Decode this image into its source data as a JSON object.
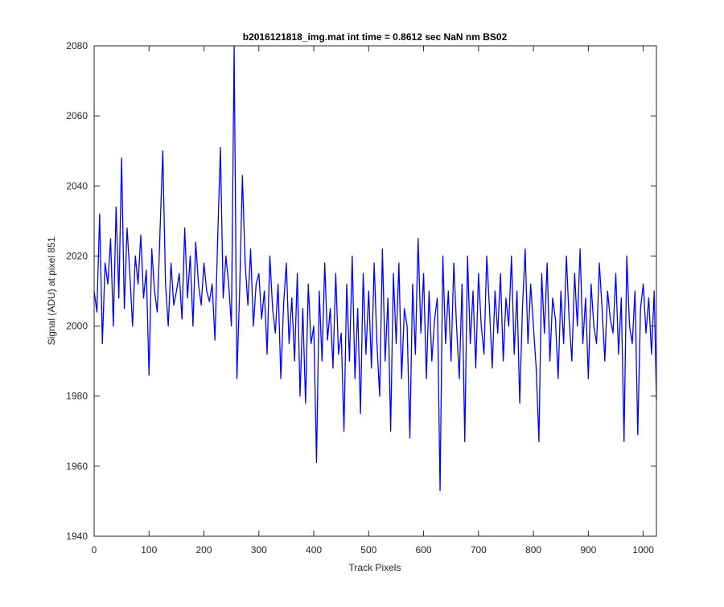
{
  "chart_data": {
    "type": "line",
    "title": "b2016121818_img.mat int time = 0.8612 sec  NaN nm BS02",
    "x_label": "Track Pixels",
    "y_label": "Signal (ADU) at pixel 851",
    "xlim": [
      0,
      1024
    ],
    "ylim": [
      1940,
      2080
    ],
    "xticks": [
      0,
      100,
      200,
      300,
      400,
      500,
      600,
      700,
      800,
      900,
      1000
    ],
    "yticks": [
      1940,
      1960,
      1980,
      2000,
      2020,
      2040,
      2060,
      2080
    ],
    "grid": false,
    "series": [
      {
        "color": "#0000ff",
        "x": [
          0,
          5,
          10,
          15,
          20,
          25,
          30,
          35,
          40,
          45,
          50,
          55,
          60,
          65,
          70,
          75,
          80,
          85,
          90,
          95,
          100,
          105,
          110,
          115,
          120,
          125,
          130,
          135,
          140,
          145,
          150,
          155,
          160,
          165,
          170,
          175,
          180,
          185,
          190,
          195,
          200,
          205,
          210,
          215,
          220,
          225,
          230,
          235,
          240,
          245,
          250,
          255,
          260,
          265,
          270,
          275,
          280,
          285,
          290,
          295,
          300,
          305,
          310,
          315,
          320,
          325,
          330,
          335,
          340,
          345,
          350,
          355,
          360,
          365,
          370,
          375,
          380,
          385,
          390,
          395,
          400,
          405,
          410,
          415,
          420,
          425,
          430,
          435,
          440,
          445,
          450,
          455,
          460,
          465,
          470,
          475,
          480,
          485,
          490,
          495,
          500,
          505,
          510,
          515,
          520,
          525,
          530,
          535,
          540,
          545,
          550,
          555,
          560,
          565,
          570,
          575,
          580,
          585,
          590,
          595,
          600,
          605,
          610,
          615,
          620,
          625,
          630,
          635,
          640,
          645,
          650,
          655,
          660,
          665,
          670,
          675,
          680,
          685,
          690,
          695,
          700,
          705,
          710,
          715,
          720,
          725,
          730,
          735,
          740,
          745,
          750,
          755,
          760,
          765,
          770,
          775,
          780,
          785,
          790,
          795,
          800,
          805,
          810,
          815,
          820,
          825,
          830,
          835,
          840,
          845,
          850,
          855,
          860,
          865,
          870,
          875,
          880,
          885,
          890,
          895,
          900,
          905,
          910,
          915,
          920,
          925,
          930,
          935,
          940,
          945,
          950,
          955,
          960,
          965,
          970,
          975,
          980,
          985,
          990,
          995,
          1000,
          1005,
          1010,
          1015,
          1020,
          1024
        ],
        "values": [
          2010,
          2004,
          2032,
          1995,
          2018,
          2012,
          2025,
          2000,
          2034,
          2008,
          2048,
          2005,
          2028,
          2015,
          2000,
          2020,
          2012,
          2026,
          2008,
          2016,
          1986,
          2022,
          2010,
          2004,
          2027,
          2050,
          2012,
          2000,
          2018,
          2006,
          2010,
          2015,
          2002,
          2028,
          2008,
          2020,
          2000,
          2024,
          2012,
          2006,
          2018,
          2010,
          2007,
          2012,
          1996,
          2025,
          2051,
          2008,
          2020,
          2012,
          2000,
          2080,
          1985,
          2010,
          2043,
          2018,
          2006,
          2022,
          2000,
          2012,
          2015,
          2002,
          2010,
          1992,
          2020,
          2005,
          1998,
          2012,
          1985,
          2006,
          2018,
          1995,
          2008,
          1990,
          2015,
          1980,
          2005,
          1978,
          2012,
          1995,
          2000,
          1961,
          2010,
          1990,
          2018,
          1996,
          2005,
          1988,
          2015,
          1992,
          1998,
          1970,
          2012,
          1990,
          2020,
          1985,
          2005,
          1975,
          2015,
          1992,
          2010,
          1988,
          2018,
          1995,
          1980,
          2022,
          1990,
          2008,
          1970,
          2015,
          1995,
          2018,
          1985,
          2005,
          2000,
          1968,
          2012,
          1992,
          2025,
          1998,
          2015,
          1985,
          2010,
          1990,
          2002,
          2008,
          1953,
          2020,
          1995,
          2010,
          1990,
          2018,
          2000,
          1985,
          2012,
          1967,
          2020,
          1995,
          2010,
          1988,
          2015,
          2000,
          1992,
          2020,
          2005,
          1988,
          2010,
          1998,
          2015,
          1990,
          2008,
          2000,
          2020,
          1992,
          2010,
          1978,
          2005,
          2022,
          1995,
          2012,
          2000,
          1988,
          1967,
          2015,
          1998,
          2018,
          1990,
          2008,
          2002,
          1985,
          2010,
          1995,
          2020,
          2002,
          1990,
          2015,
          2000,
          2022,
          1995,
          2008,
          1985,
          2012,
          2000,
          1995,
          2018,
          2005,
          1990,
          2010,
          2002,
          1998,
          2015,
          1992,
          2008,
          1967,
          2020,
          2000,
          1995,
          2010,
          1969,
          2005,
          2012,
          1998,
          2008,
          1992,
          2010,
          1979
        ]
      }
    ]
  }
}
